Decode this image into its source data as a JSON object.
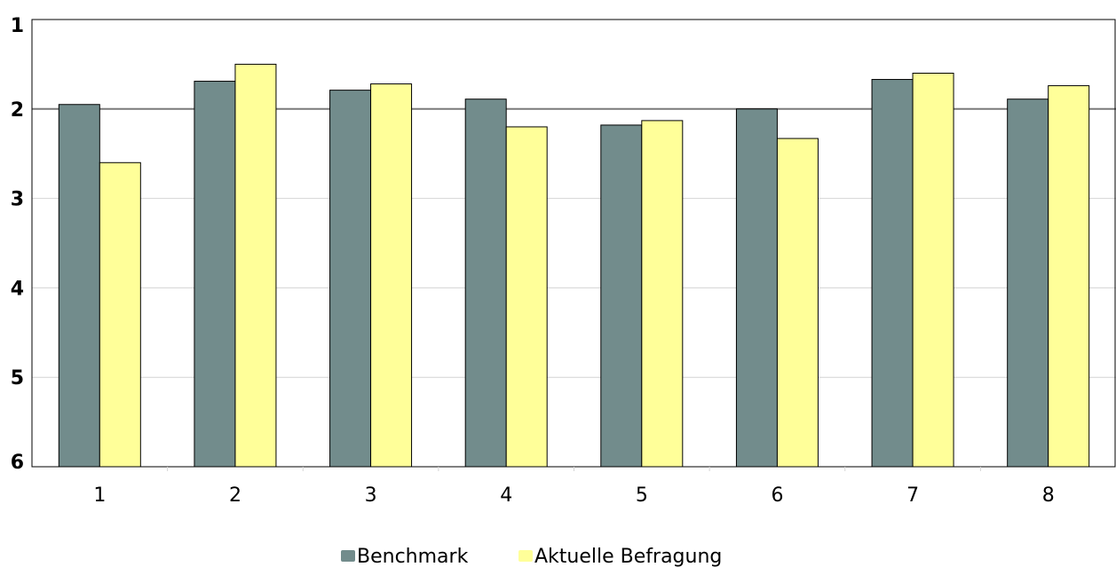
{
  "chart_data": {
    "type": "bar",
    "categories": [
      "1",
      "2",
      "3",
      "4",
      "5",
      "6",
      "7",
      "8"
    ],
    "y_ticks": [
      "1",
      "2",
      "3",
      "4",
      "5",
      "6"
    ],
    "ylim": [
      1,
      6
    ],
    "y_inverted": true,
    "grid": true,
    "reference_line": 2,
    "legend_position": "bottom-center",
    "series": [
      {
        "name": "Benchmark",
        "color": "#728c8c",
        "values": [
          1.95,
          1.69,
          1.79,
          1.89,
          2.18,
          2.0,
          1.67,
          1.89
        ]
      },
      {
        "name": "Aktuelle Befragung",
        "color": "#ffff99",
        "values": [
          2.6,
          1.5,
          1.72,
          2.2,
          2.13,
          2.33,
          1.6,
          1.74
        ]
      }
    ]
  }
}
